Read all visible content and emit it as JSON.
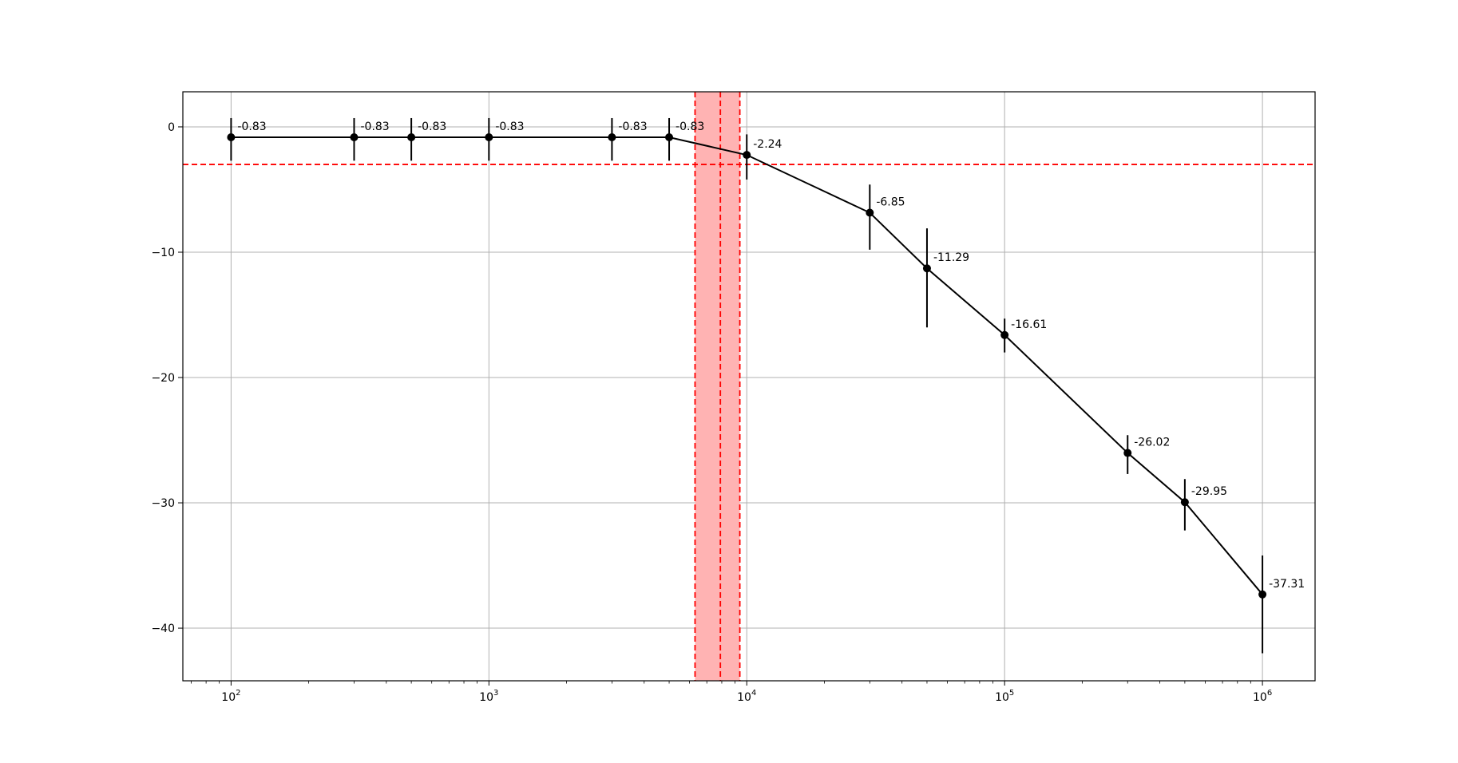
{
  "chart_data": {
    "type": "line",
    "title": "",
    "xlabel": "",
    "ylabel": "",
    "xscale": "log",
    "xlim": [
      65,
      1600000
    ],
    "ylim": [
      -44.2,
      2.8
    ],
    "grid": true,
    "x_ticks": [
      100,
      1000,
      10000,
      100000,
      1000000
    ],
    "x_tick_labels": [
      {
        "base": "10",
        "exp": "2"
      },
      {
        "base": "10",
        "exp": "3"
      },
      {
        "base": "10",
        "exp": "4"
      },
      {
        "base": "10",
        "exp": "5"
      },
      {
        "base": "10",
        "exp": "6"
      }
    ],
    "y_ticks": [
      0,
      -10,
      -20,
      -30,
      -40
    ],
    "y_tick_labels": [
      "0",
      "−10",
      "−20",
      "−30",
      "−40"
    ],
    "series": [
      {
        "color": "#000000",
        "x": [
          100,
          300,
          500,
          1000,
          3000,
          5000,
          10000,
          30000,
          50000,
          100000,
          300000,
          500000,
          1000000
        ],
        "y": [
          -0.83,
          -0.83,
          -0.83,
          -0.83,
          -0.83,
          -0.83,
          -2.24,
          -6.85,
          -11.29,
          -16.61,
          -26.02,
          -29.95,
          -37.31
        ],
        "err_low": [
          -2.7,
          -2.7,
          -2.7,
          -2.7,
          -2.7,
          -2.7,
          -4.2,
          -9.8,
          -16.0,
          -18.0,
          -27.7,
          -32.2,
          -42.0
        ],
        "err_high": [
          0.7,
          0.7,
          0.7,
          0.7,
          0.7,
          0.7,
          -0.6,
          -4.6,
          -8.1,
          -15.3,
          -24.6,
          -28.1,
          -34.2
        ],
        "labels": [
          "-0.83",
          "-0.83",
          "-0.83",
          "-0.83",
          "-0.83",
          "-0.83",
          "-2.24",
          "-6.85",
          "-11.29",
          "-16.61",
          "-26.02",
          "-29.95",
          "-37.31"
        ]
      }
    ],
    "reference_line": {
      "y": -3,
      "color": "#ff0000",
      "style": "dashed"
    },
    "band": {
      "x_from": 6300,
      "x_to": 9400,
      "center": 7900,
      "fill": "#ffb3b3",
      "edge_color": "#ff0000",
      "style": "dashed"
    },
    "accent_colors": {
      "line": "#000000",
      "reference": "#ff0000",
      "band": "#ffb3b3",
      "grid": "#b0b0b0"
    }
  }
}
